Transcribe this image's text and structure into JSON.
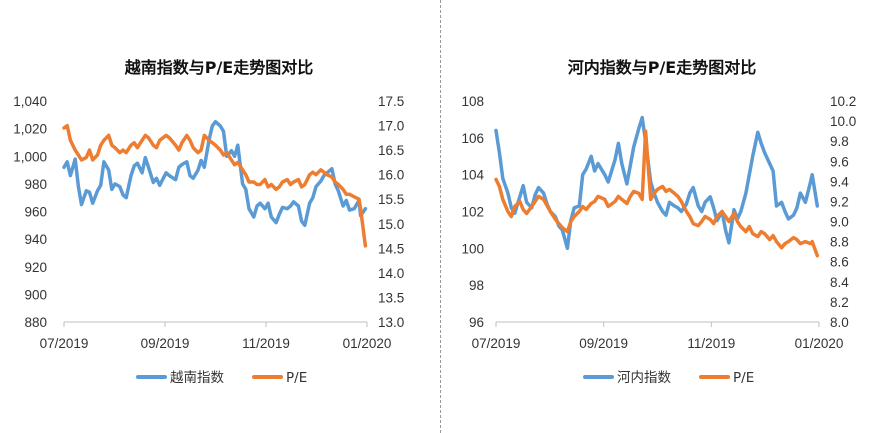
{
  "colors": {
    "index": "#5b9bd5",
    "pe": "#ed7d31",
    "axis": "#bfbfbf",
    "divider": "#9a9a9a"
  },
  "chart_data": [
    {
      "type": "line",
      "title": "越南指数与P/E走势图对比",
      "x_ticks": [
        "07/2019",
        "09/2019",
        "11/2019",
        "01/2020"
      ],
      "x_range": [
        "2019-07-01",
        "2020-01-07"
      ],
      "ylim_left": [
        880,
        1040
      ],
      "yticks_left": [
        "880",
        "900",
        "920",
        "940",
        "960",
        "980",
        "1,000",
        "1,020",
        "1,040"
      ],
      "ylim_right": [
        13.0,
        17.5
      ],
      "yticks_right": [
        "13.0",
        "13.5",
        "14.0",
        "14.5",
        "15.0",
        "15.5",
        "16.0",
        "16.5",
        "17.0",
        "17.5"
      ],
      "series": [
        {
          "name": "越南指数",
          "axis": "left",
          "x": [
            "2019-07-01",
            "2019-07-03",
            "2019-07-05",
            "2019-07-08",
            "2019-07-10",
            "2019-07-12",
            "2019-07-15",
            "2019-07-17",
            "2019-07-19",
            "2019-07-22",
            "2019-07-24",
            "2019-07-26",
            "2019-07-29",
            "2019-07-31",
            "2019-08-02",
            "2019-08-05",
            "2019-08-07",
            "2019-08-09",
            "2019-08-12",
            "2019-08-14",
            "2019-08-16",
            "2019-08-19",
            "2019-08-21",
            "2019-08-23",
            "2019-08-26",
            "2019-08-28",
            "2019-08-30",
            "2019-09-03",
            "2019-09-05",
            "2019-09-09",
            "2019-09-11",
            "2019-09-13",
            "2019-09-16",
            "2019-09-18",
            "2019-09-20",
            "2019-09-23",
            "2019-09-25",
            "2019-09-27",
            "2019-09-30",
            "2019-10-02",
            "2019-10-04",
            "2019-10-07",
            "2019-10-09",
            "2019-10-11",
            "2019-10-14",
            "2019-10-16",
            "2019-10-18",
            "2019-10-21",
            "2019-10-23",
            "2019-10-25",
            "2019-10-28",
            "2019-10-30",
            "2019-11-01",
            "2019-11-04",
            "2019-11-06",
            "2019-11-08",
            "2019-11-11",
            "2019-11-13",
            "2019-11-15",
            "2019-11-18",
            "2019-11-20",
            "2019-11-22",
            "2019-11-25",
            "2019-11-27",
            "2019-11-29",
            "2019-12-02",
            "2019-12-04",
            "2019-12-06",
            "2019-12-09",
            "2019-12-11",
            "2019-12-13",
            "2019-12-16",
            "2019-12-18",
            "2019-12-20",
            "2019-12-23",
            "2019-12-25",
            "2019-12-27",
            "2019-12-30",
            "2020-01-02",
            "2020-01-03",
            "2020-01-06"
          ],
          "values": [
            992,
            996,
            986,
            998,
            978,
            965,
            975,
            974,
            966,
            975,
            979,
            996,
            990,
            976,
            980,
            978,
            972,
            970,
            986,
            993,
            995,
            988,
            999,
            992,
            981,
            984,
            979,
            988,
            986,
            983,
            992,
            994,
            996,
            986,
            984,
            990,
            997,
            992,
            1012,
            1022,
            1025,
            1022,
            1018,
            1000,
            1004,
            1000,
            1008,
            980,
            976,
            962,
            956,
            964,
            966,
            962,
            966,
            956,
            952,
            958,
            963,
            962,
            964,
            967,
            964,
            953,
            950,
            966,
            970,
            978,
            982,
            986,
            988,
            991,
            980,
            975,
            964,
            968,
            961,
            962,
            968,
            957,
            962
          ]
        },
        {
          "name": "P/E",
          "axis": "right",
          "x": [
            "2019-07-01",
            "2019-07-03",
            "2019-07-05",
            "2019-07-08",
            "2019-07-10",
            "2019-07-12",
            "2019-07-15",
            "2019-07-17",
            "2019-07-19",
            "2019-07-22",
            "2019-07-24",
            "2019-07-26",
            "2019-07-29",
            "2019-07-31",
            "2019-08-02",
            "2019-08-05",
            "2019-08-07",
            "2019-08-09",
            "2019-08-12",
            "2019-08-14",
            "2019-08-16",
            "2019-08-19",
            "2019-08-21",
            "2019-08-23",
            "2019-08-26",
            "2019-08-28",
            "2019-08-30",
            "2019-09-03",
            "2019-09-05",
            "2019-09-09",
            "2019-09-11",
            "2019-09-13",
            "2019-09-16",
            "2019-09-18",
            "2019-09-20",
            "2019-09-23",
            "2019-09-25",
            "2019-09-27",
            "2019-09-30",
            "2019-10-02",
            "2019-10-04",
            "2019-10-07",
            "2019-10-09",
            "2019-10-11",
            "2019-10-14",
            "2019-10-16",
            "2019-10-18",
            "2019-10-21",
            "2019-10-23",
            "2019-10-25",
            "2019-10-28",
            "2019-10-30",
            "2019-11-01",
            "2019-11-04",
            "2019-11-06",
            "2019-11-08",
            "2019-11-11",
            "2019-11-13",
            "2019-11-15",
            "2019-11-18",
            "2019-11-20",
            "2019-11-22",
            "2019-11-25",
            "2019-11-27",
            "2019-11-29",
            "2019-12-02",
            "2019-12-04",
            "2019-12-06",
            "2019-12-09",
            "2019-12-11",
            "2019-12-13",
            "2019-12-16",
            "2019-12-18",
            "2019-12-20",
            "2019-12-23",
            "2019-12-25",
            "2019-12-27",
            "2019-12-30",
            "2020-01-02",
            "2020-01-03",
            "2020-01-06"
          ],
          "values": [
            16.95,
            17.0,
            16.7,
            16.5,
            16.4,
            16.3,
            16.35,
            16.5,
            16.3,
            16.4,
            16.6,
            16.7,
            16.8,
            16.6,
            16.55,
            16.45,
            16.5,
            16.45,
            16.6,
            16.65,
            16.55,
            16.7,
            16.8,
            16.75,
            16.6,
            16.55,
            16.7,
            16.8,
            16.75,
            16.6,
            16.5,
            16.65,
            16.8,
            16.7,
            16.55,
            16.45,
            16.5,
            16.8,
            16.7,
            16.65,
            16.6,
            16.5,
            16.4,
            16.45,
            16.3,
            16.2,
            16.25,
            16.1,
            16.0,
            15.85,
            15.85,
            15.8,
            15.8,
            15.9,
            15.75,
            15.8,
            15.7,
            15.75,
            15.85,
            15.9,
            15.8,
            15.85,
            15.9,
            15.75,
            15.8,
            16.0,
            16.05,
            16.0,
            16.1,
            16.05,
            16.0,
            15.95,
            15.85,
            15.8,
            15.7,
            15.6,
            15.6,
            15.55,
            15.5,
            15.3,
            14.55
          ]
        }
      ]
    },
    {
      "type": "line",
      "title": "河内指数与P/E走势图对比",
      "x_ticks": [
        "07/2019",
        "09/2019",
        "11/2019",
        "01/2020"
      ],
      "x_range": [
        "2019-07-01",
        "2020-01-07"
      ],
      "ylim_left": [
        96,
        108
      ],
      "yticks_left": [
        "96",
        "98",
        "100",
        "102",
        "104",
        "106",
        "108"
      ],
      "ylim_right": [
        8.0,
        10.2
      ],
      "yticks_right": [
        "8.0",
        "8.2",
        "8.4",
        "8.6",
        "8.8",
        "9.0",
        "9.2",
        "9.4",
        "9.6",
        "9.8",
        "10.0",
        "10.2"
      ],
      "series": [
        {
          "name": "河内指数",
          "axis": "left",
          "x": [
            "2019-07-01",
            "2019-07-03",
            "2019-07-05",
            "2019-07-08",
            "2019-07-10",
            "2019-07-12",
            "2019-07-15",
            "2019-07-17",
            "2019-07-19",
            "2019-07-22",
            "2019-07-24",
            "2019-07-26",
            "2019-07-29",
            "2019-07-31",
            "2019-08-02",
            "2019-08-05",
            "2019-08-07",
            "2019-08-09",
            "2019-08-12",
            "2019-08-14",
            "2019-08-16",
            "2019-08-19",
            "2019-08-21",
            "2019-08-23",
            "2019-08-26",
            "2019-08-28",
            "2019-08-30",
            "2019-09-03",
            "2019-09-05",
            "2019-09-09",
            "2019-09-11",
            "2019-09-13",
            "2019-09-16",
            "2019-09-18",
            "2019-09-20",
            "2019-09-23",
            "2019-09-25",
            "2019-09-27",
            "2019-09-30",
            "2019-10-02",
            "2019-10-04",
            "2019-10-07",
            "2019-10-09",
            "2019-10-11",
            "2019-10-14",
            "2019-10-16",
            "2019-10-18",
            "2019-10-21",
            "2019-10-23",
            "2019-10-25",
            "2019-10-28",
            "2019-10-30",
            "2019-11-01",
            "2019-11-04",
            "2019-11-06",
            "2019-11-08",
            "2019-11-11",
            "2019-11-13",
            "2019-11-15",
            "2019-11-18",
            "2019-11-20",
            "2019-11-22",
            "2019-11-25",
            "2019-11-27",
            "2019-11-29",
            "2019-12-02",
            "2019-12-04",
            "2019-12-06",
            "2019-12-09",
            "2019-12-11",
            "2019-12-13",
            "2019-12-16",
            "2019-12-18",
            "2019-12-20",
            "2019-12-23",
            "2019-12-25",
            "2019-12-27",
            "2019-12-30",
            "2020-01-02",
            "2020-01-03",
            "2020-01-06"
          ],
          "values": [
            106.4,
            105.2,
            103.8,
            103.0,
            102.2,
            101.9,
            102.8,
            103.4,
            102.5,
            102.2,
            102.9,
            103.3,
            103.0,
            102.4,
            102.0,
            101.7,
            101.2,
            101.0,
            100.0,
            101.5,
            102.2,
            102.3,
            104.0,
            104.3,
            105.0,
            104.2,
            104.6,
            104.0,
            103.6,
            104.8,
            105.7,
            104.6,
            103.5,
            104.5,
            105.5,
            106.5,
            107.1,
            105.8,
            103.6,
            103.0,
            102.5,
            102.0,
            101.8,
            102.5,
            102.3,
            102.2,
            102.0,
            102.4,
            103.0,
            103.3,
            102.3,
            102.0,
            102.5,
            102.8,
            102.2,
            101.5,
            102.0,
            101.0,
            100.3,
            102.1,
            101.6,
            102.0,
            103.0,
            104.0,
            105.0,
            106.3,
            105.7,
            105.2,
            104.6,
            104.2,
            102.3,
            102.5,
            102.0,
            101.6,
            101.8,
            102.2,
            103.0,
            102.5,
            103.6,
            104.0,
            102.3
          ]
        },
        {
          "name": "P/E",
          "axis": "right",
          "x": [
            "2019-07-01",
            "2019-07-03",
            "2019-07-05",
            "2019-07-08",
            "2019-07-10",
            "2019-07-12",
            "2019-07-15",
            "2019-07-17",
            "2019-07-19",
            "2019-07-22",
            "2019-07-24",
            "2019-07-26",
            "2019-07-29",
            "2019-07-31",
            "2019-08-02",
            "2019-08-05",
            "2019-08-07",
            "2019-08-09",
            "2019-08-12",
            "2019-08-14",
            "2019-08-16",
            "2019-08-19",
            "2019-08-21",
            "2019-08-23",
            "2019-08-26",
            "2019-08-28",
            "2019-08-30",
            "2019-09-03",
            "2019-09-05",
            "2019-09-09",
            "2019-09-11",
            "2019-09-13",
            "2019-09-16",
            "2019-09-18",
            "2019-09-20",
            "2019-09-23",
            "2019-09-25",
            "2019-09-27",
            "2019-09-30",
            "2019-10-02",
            "2019-10-04",
            "2019-10-07",
            "2019-10-09",
            "2019-10-11",
            "2019-10-14",
            "2019-10-16",
            "2019-10-18",
            "2019-10-21",
            "2019-10-23",
            "2019-10-25",
            "2019-10-28",
            "2019-10-30",
            "2019-11-01",
            "2019-11-04",
            "2019-11-06",
            "2019-11-08",
            "2019-11-11",
            "2019-11-13",
            "2019-11-15",
            "2019-11-18",
            "2019-11-20",
            "2019-11-22",
            "2019-11-25",
            "2019-11-27",
            "2019-11-29",
            "2019-12-02",
            "2019-12-04",
            "2019-12-06",
            "2019-12-09",
            "2019-12-11",
            "2019-12-13",
            "2019-12-16",
            "2019-12-18",
            "2019-12-20",
            "2019-12-23",
            "2019-12-25",
            "2019-12-27",
            "2019-12-30",
            "2020-01-02",
            "2020-01-03",
            "2020-01-06"
          ],
          "values": [
            9.42,
            9.35,
            9.22,
            9.1,
            9.05,
            9.15,
            9.2,
            9.12,
            9.08,
            9.15,
            9.2,
            9.25,
            9.22,
            9.16,
            9.1,
            9.02,
            8.98,
            8.94,
            8.9,
            9.0,
            9.05,
            9.1,
            9.15,
            9.12,
            9.18,
            9.2,
            9.25,
            9.22,
            9.15,
            9.2,
            9.25,
            9.22,
            9.18,
            9.25,
            9.3,
            9.28,
            9.22,
            9.9,
            9.22,
            9.28,
            9.32,
            9.35,
            9.3,
            9.32,
            9.28,
            9.25,
            9.2,
            9.1,
            9.05,
            8.98,
            8.96,
            9.0,
            9.05,
            9.02,
            8.98,
            9.05,
            9.1,
            9.05,
            9.0,
            9.08,
            9.0,
            8.95,
            8.9,
            8.95,
            8.88,
            8.85,
            8.9,
            8.88,
            8.82,
            8.86,
            8.8,
            8.74,
            8.78,
            8.8,
            8.84,
            8.82,
            8.78,
            8.8,
            8.78,
            8.8,
            8.66
          ]
        }
      ]
    }
  ]
}
